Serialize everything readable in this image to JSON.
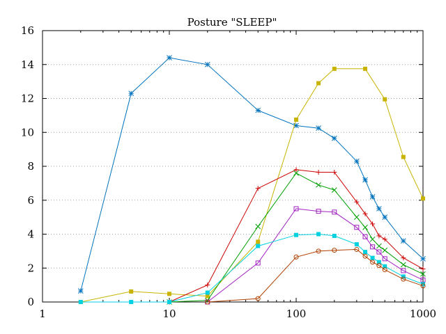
{
  "chart_data": {
    "type": "line",
    "title": "Posture \"SLEEP\"",
    "xlabel": "",
    "ylabel": "",
    "xscale": "log",
    "xlim": [
      1,
      1000
    ],
    "ylim": [
      0,
      16
    ],
    "grid": "horizontal dotted",
    "legend": "none",
    "x_ticks": [
      1,
      10,
      100,
      1000
    ],
    "x_tick_labels": [
      "1",
      "10",
      "100",
      "1000"
    ],
    "y_ticks": [
      0,
      2,
      4,
      6,
      8,
      10,
      12,
      14,
      16
    ],
    "y_tick_labels": [
      "0",
      "2",
      "4",
      "6",
      "8",
      "10",
      "12",
      "14",
      "16"
    ],
    "series": [
      {
        "color": "#0072bd",
        "marker": "asterisk",
        "points": [
          [
            2,
            0.65
          ],
          [
            5,
            12.3
          ],
          [
            10,
            14.4
          ],
          [
            20,
            14.0
          ],
          [
            50,
            11.3
          ],
          [
            100,
            10.4
          ],
          [
            150,
            10.25
          ],
          [
            200,
            9.65
          ],
          [
            300,
            8.3
          ],
          [
            350,
            7.2
          ],
          [
            400,
            6.2
          ],
          [
            450,
            5.5
          ],
          [
            500,
            5.0
          ],
          [
            700,
            3.6
          ],
          [
            1000,
            2.55
          ]
        ]
      },
      {
        "color": "#c8b400",
        "marker": "filled-square",
        "points": [
          [
            2,
            0
          ],
          [
            5,
            0.62
          ],
          [
            10,
            0.48
          ],
          [
            20,
            0.35
          ],
          [
            50,
            3.55
          ],
          [
            100,
            10.75
          ],
          [
            150,
            12.9
          ],
          [
            200,
            13.75
          ],
          [
            350,
            13.75
          ],
          [
            500,
            11.95
          ],
          [
            700,
            8.55
          ],
          [
            1000,
            6.1
          ]
        ]
      },
      {
        "color": "#cc0000",
        "marker": "plus",
        "points": [
          [
            10,
            0
          ],
          [
            20,
            1.0
          ],
          [
            50,
            6.7
          ],
          [
            100,
            7.8
          ],
          [
            150,
            7.65
          ],
          [
            200,
            7.65
          ],
          [
            300,
            5.9
          ],
          [
            350,
            5.2
          ],
          [
            400,
            4.6
          ],
          [
            450,
            3.9
          ],
          [
            500,
            3.7
          ],
          [
            700,
            2.6
          ],
          [
            1000,
            1.95
          ]
        ]
      },
      {
        "color": "#00a000",
        "marker": "cross",
        "points": [
          [
            10,
            0
          ],
          [
            20,
            0.1
          ],
          [
            50,
            4.45
          ],
          [
            100,
            7.6
          ],
          [
            150,
            6.9
          ],
          [
            200,
            6.6
          ],
          [
            300,
            5.0
          ],
          [
            350,
            4.4
          ],
          [
            400,
            3.7
          ],
          [
            450,
            3.3
          ],
          [
            500,
            3.05
          ],
          [
            700,
            2.2
          ],
          [
            1000,
            1.65
          ]
        ]
      },
      {
        "color": "#a020c0",
        "marker": "open-square",
        "points": [
          [
            20,
            0
          ],
          [
            50,
            2.3
          ],
          [
            100,
            5.5
          ],
          [
            150,
            5.35
          ],
          [
            200,
            5.3
          ],
          [
            300,
            4.4
          ],
          [
            350,
            3.85
          ],
          [
            400,
            3.25
          ],
          [
            450,
            2.95
          ],
          [
            500,
            2.55
          ],
          [
            700,
            1.85
          ],
          [
            1000,
            1.3
          ]
        ]
      },
      {
        "color": "#00d0e0",
        "marker": "filled-square",
        "points": [
          [
            2,
            0
          ],
          [
            5,
            0
          ],
          [
            10,
            0
          ],
          [
            20,
            0.55
          ],
          [
            50,
            3.3
          ],
          [
            100,
            3.95
          ],
          [
            150,
            4.0
          ],
          [
            200,
            3.9
          ],
          [
            300,
            3.4
          ],
          [
            350,
            2.95
          ],
          [
            400,
            2.6
          ],
          [
            450,
            2.35
          ],
          [
            500,
            2.1
          ],
          [
            700,
            1.5
          ],
          [
            1000,
            1.05
          ]
        ]
      },
      {
        "color": "#b04000",
        "marker": "open-circle",
        "points": [
          [
            20,
            0
          ],
          [
            50,
            0.2
          ],
          [
            100,
            2.65
          ],
          [
            150,
            3.0
          ],
          [
            200,
            3.05
          ],
          [
            300,
            3.1
          ],
          [
            350,
            2.7
          ],
          [
            400,
            2.35
          ],
          [
            450,
            2.15
          ],
          [
            500,
            1.9
          ],
          [
            700,
            1.35
          ],
          [
            1000,
            0.95
          ]
        ]
      }
    ]
  }
}
